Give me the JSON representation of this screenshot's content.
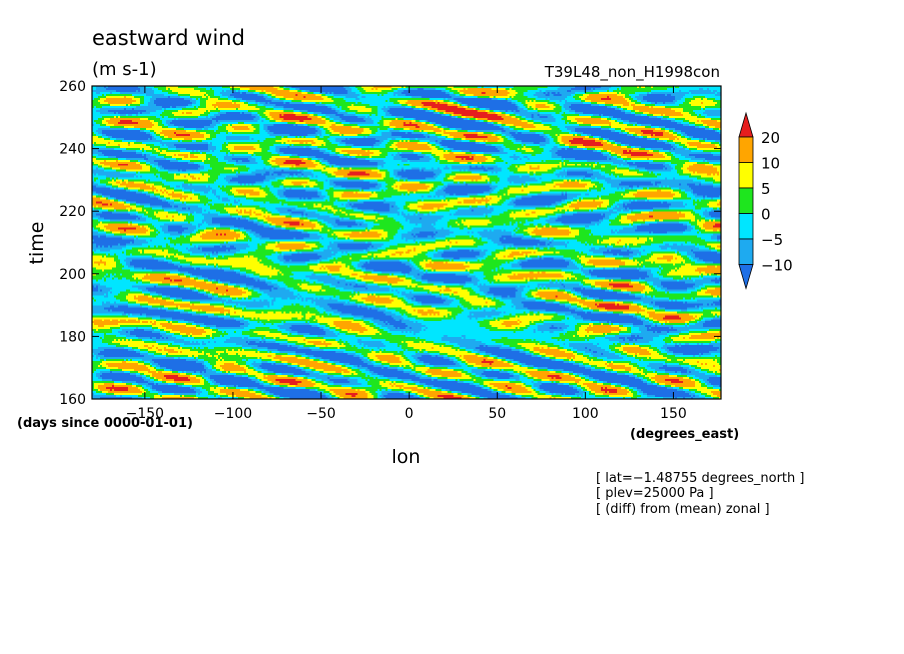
{
  "title": "eastward wind",
  "units": "(m s-1)",
  "experiment": "T39L48_non_H1998con",
  "chart_data": {
    "type": "heatmap",
    "title": "eastward wind",
    "units": "(m s-1)",
    "xlabel": "lon",
    "ylabel": "time",
    "x_unit": "(degrees_east)",
    "y_unit": "(days since 0000-01-01)",
    "xlim": [
      -180,
      177
    ],
    "ylim": [
      160,
      260
    ],
    "x_ticks": [
      -150,
      -100,
      -50,
      0,
      50,
      100,
      150
    ],
    "y_ticks": [
      160,
      180,
      200,
      220,
      240,
      260
    ],
    "x_tick_labels": [
      "−150",
      "−100",
      "−50",
      "0",
      "50",
      "100",
      "150"
    ],
    "y_tick_labels": [
      "160",
      "180",
      "200",
      "220",
      "240",
      "260"
    ],
    "colorbar": {
      "levels": [
        -10,
        -5,
        0,
        5,
        10,
        20
      ],
      "level_labels": [
        "−10",
        "−5",
        "0",
        "5",
        "10",
        "20"
      ],
      "colors": [
        "#1e6fe6",
        "#1eaaf0",
        "#00e6ff",
        "#1ee61e",
        "#ffff00",
        "#ffa500",
        "#e61e1e"
      ],
      "extend": "both"
    },
    "annotations": [
      "[ lat=−1.48755 degrees_north ]",
      "[ plev=25000 Pa ]",
      "[ (diff) from (mean) zonal ]"
    ]
  }
}
